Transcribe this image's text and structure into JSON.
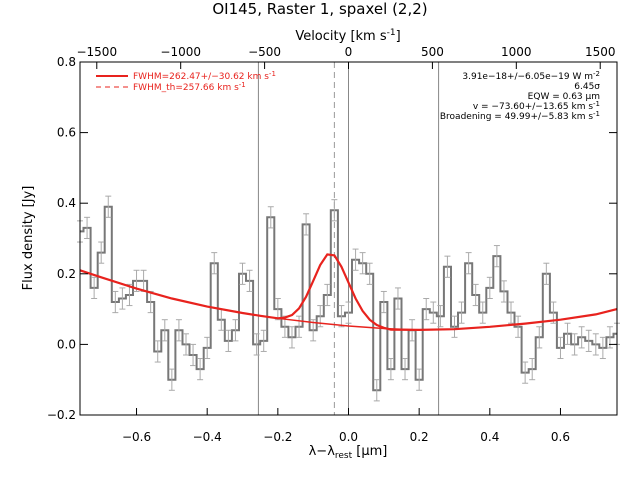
{
  "chart_data": {
    "type": "line",
    "title": "OI145, Raster 1, spaxel (2,2)",
    "xlabel": "λ−λ",
    "xlabel_sub": "rest",
    "xlabel_unit": " [μm]",
    "ylabel": "Flux density [Jy]",
    "top_axis_label": "Velocity [km s",
    "top_axis_label_sup": "-1",
    "top_axis_label_end": "]",
    "xlim": [
      -0.76,
      0.76
    ],
    "ylim": [
      -0.2,
      0.8
    ],
    "top_xlim": [
      -1600,
      1600
    ],
    "x_ticks": [
      -0.6,
      -0.4,
      -0.2,
      0.0,
      0.2,
      0.4,
      0.6
    ],
    "x_tick_labels": [
      "−0.6",
      "−0.4",
      "−0.2",
      "0.0",
      "0.2",
      "0.4",
      "0.6"
    ],
    "y_ticks": [
      -0.2,
      0.0,
      0.2,
      0.4,
      0.6,
      0.8
    ],
    "y_tick_labels": [
      "−0.2",
      "0.0",
      "0.2",
      "0.4",
      "0.6",
      "0.8"
    ],
    "top_ticks": [
      -1500,
      -1000,
      -500,
      0,
      500,
      1000,
      1500
    ],
    "top_tick_labels": [
      "−1500",
      "−1000",
      "−500",
      "0",
      "500",
      "1000",
      "1500"
    ],
    "vlines_solid": [
      -0.255,
      0.0,
      0.255
    ],
    "vline_dashed": -0.04,
    "legend": [
      {
        "label": "FWHM=262.47+/−30.62 km s",
        "sup": "-1",
        "style": "solid",
        "color": "#e8231e"
      },
      {
        "label": "FWHM_th=257.66 km s",
        "sup": "-1",
        "style": "dashed",
        "color": "#e8231e"
      }
    ],
    "annotations": [
      {
        "text": "3.91e−18+/−6.05e−19 W m",
        "sup": "-2"
      },
      {
        "text": "6.45σ",
        "sup": ""
      },
      {
        "text": "EQW = 0.63 μm",
        "sup": ""
      },
      {
        "text": "v = −73.60+/−13.65 km s",
        "sup": "-1"
      },
      {
        "text": "Broadening = 49.99+/−5.83 km s",
        "sup": "-1"
      }
    ],
    "series": [
      {
        "style": "step",
        "color": "#777777",
        "x": [
          -0.76,
          -0.74,
          -0.72,
          -0.7,
          -0.68,
          -0.66,
          -0.64,
          -0.62,
          -0.6,
          -0.58,
          -0.56,
          -0.54,
          -0.52,
          -0.5,
          -0.48,
          -0.46,
          -0.44,
          -0.42,
          -0.4,
          -0.38,
          -0.36,
          -0.34,
          -0.32,
          -0.3,
          -0.28,
          -0.26,
          -0.24,
          -0.22,
          -0.2,
          -0.18,
          -0.16,
          -0.14,
          -0.12,
          -0.1,
          -0.08,
          -0.06,
          -0.04,
          -0.02,
          0.0,
          0.02,
          0.04,
          0.06,
          0.08,
          0.1,
          0.12,
          0.14,
          0.16,
          0.18,
          0.2,
          0.22,
          0.24,
          0.26,
          0.28,
          0.3,
          0.32,
          0.34,
          0.36,
          0.38,
          0.4,
          0.42,
          0.44,
          0.46,
          0.48,
          0.5,
          0.52,
          0.54,
          0.56,
          0.58,
          0.6,
          0.62,
          0.64,
          0.66,
          0.68,
          0.7,
          0.72,
          0.74,
          0.76
        ],
        "y": [
          0.32,
          0.33,
          0.16,
          0.26,
          0.39,
          0.12,
          0.13,
          0.14,
          0.18,
          0.18,
          0.12,
          -0.02,
          0.04,
          -0.1,
          0.04,
          0.0,
          -0.03,
          -0.07,
          -0.01,
          0.23,
          0.07,
          0.01,
          0.04,
          0.2,
          0.18,
          0.0,
          0.01,
          0.36,
          0.1,
          0.05,
          0.02,
          0.05,
          0.34,
          0.04,
          0.08,
          0.14,
          0.38,
          0.08,
          0.09,
          0.24,
          0.23,
          0.2,
          -0.13,
          0.12,
          -0.07,
          0.13,
          -0.07,
          0.04,
          -0.1,
          0.1,
          0.09,
          0.08,
          0.22,
          0.05,
          0.09,
          0.23,
          0.14,
          0.09,
          0.16,
          0.25,
          0.15,
          0.09,
          0.05,
          -0.08,
          -0.07,
          0.02,
          0.2,
          0.09,
          -0.01,
          0.03,
          0.0,
          0.02,
          0.01,
          0.0,
          -0.01,
          0.02,
          0.03
        ],
        "err": 0.03
      },
      {
        "style": "line",
        "color": "#e8231e",
        "label": "FWHM=262.47+/−30.62 km s",
        "x": [
          -0.76,
          -0.7,
          -0.6,
          -0.5,
          -0.4,
          -0.3,
          -0.25,
          -0.2,
          -0.18,
          -0.16,
          -0.14,
          -0.12,
          -0.1,
          -0.08,
          -0.06,
          -0.04,
          -0.02,
          0.0,
          0.02,
          0.04,
          0.06,
          0.08,
          0.1,
          0.12,
          0.2,
          0.3,
          0.4,
          0.5,
          0.6,
          0.7,
          0.76
        ],
        "y": [
          0.21,
          0.19,
          0.158,
          0.13,
          0.107,
          0.089,
          0.081,
          0.074,
          0.076,
          0.083,
          0.102,
          0.135,
          0.18,
          0.225,
          0.255,
          0.252,
          0.22,
          0.175,
          0.13,
          0.095,
          0.07,
          0.055,
          0.047,
          0.042,
          0.041,
          0.043,
          0.05,
          0.059,
          0.07,
          0.085,
          0.1
        ]
      },
      {
        "style": "line",
        "color": "#e8231e",
        "x": [
          -0.76,
          -0.7,
          -0.6,
          -0.5,
          -0.4,
          -0.3,
          -0.2,
          -0.1,
          0.0,
          0.1,
          0.2,
          0.3,
          0.4,
          0.5,
          0.6,
          0.7,
          0.76
        ],
        "y": [
          0.21,
          0.19,
          0.158,
          0.13,
          0.107,
          0.089,
          0.074,
          0.062,
          0.052,
          0.045,
          0.041,
          0.043,
          0.05,
          0.059,
          0.07,
          0.085,
          0.1
        ]
      }
    ]
  }
}
